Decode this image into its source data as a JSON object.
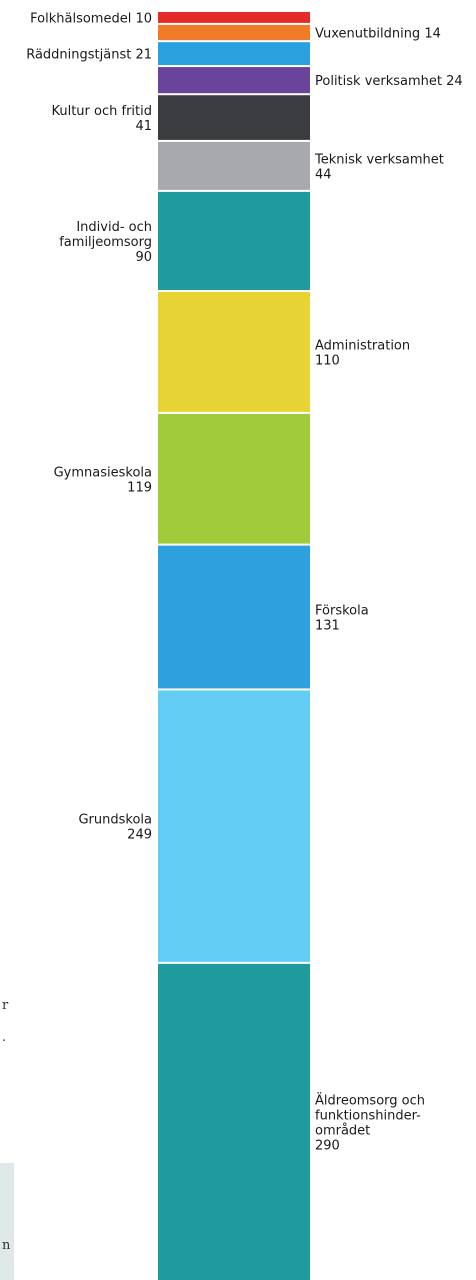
{
  "chart_data": {
    "type": "bar",
    "stacked": true,
    "orientation": "vertical",
    "title": "",
    "xlabel": "",
    "ylabel": "",
    "legend": "none",
    "grid": false,
    "segments": [
      {
        "lines": [
          "Folkhälsomedel 10"
        ],
        "value": 10,
        "color": "#e52a2a",
        "side": "left"
      },
      {
        "lines": [
          "Vuxenutbildning 14"
        ],
        "value": 14,
        "color": "#f07c2a",
        "side": "right"
      },
      {
        "lines": [
          "Räddningstjänst 21"
        ],
        "value": 21,
        "color": "#2aa0de",
        "side": "left"
      },
      {
        "lines": [
          "Politisk verksamhet 24"
        ],
        "value": 24,
        "color": "#6a449b",
        "side": "right"
      },
      {
        "lines": [
          "Kultur och fritid",
          "41"
        ],
        "value": 41,
        "color": "#3a3c3f",
        "side": "left"
      },
      {
        "lines": [
          "Teknisk verksamhet",
          "44"
        ],
        "value": 44,
        "color": "#a7a9ac",
        "side": "right"
      },
      {
        "lines": [
          "Individ- och",
          "familjeomsorg",
          "90"
        ],
        "value": 90,
        "color": "#209b9d",
        "side": "left"
      },
      {
        "lines": [
          "Administration",
          "110"
        ],
        "value": 110,
        "color": "#e8d335",
        "side": "right"
      },
      {
        "lines": [
          "Gymnasieskola",
          "119"
        ],
        "value": 119,
        "color": "#a2cb3c",
        "side": "left"
      },
      {
        "lines": [
          "Förskola",
          "131"
        ],
        "value": 131,
        "color": "#2da0dd",
        "side": "right"
      },
      {
        "lines": [
          "Grundskola",
          "249"
        ],
        "value": 249,
        "color": "#64cdf3",
        "side": "left"
      },
      {
        "lines": [
          "Äldreomsorg och",
          "funktionshinder-",
          "området",
          "290"
        ],
        "value": 290,
        "color": "#209b9d",
        "side": "right"
      }
    ]
  },
  "edge_text": [
    {
      "text": "r"
    },
    {
      "text": "."
    },
    {
      "text": "n"
    }
  ]
}
